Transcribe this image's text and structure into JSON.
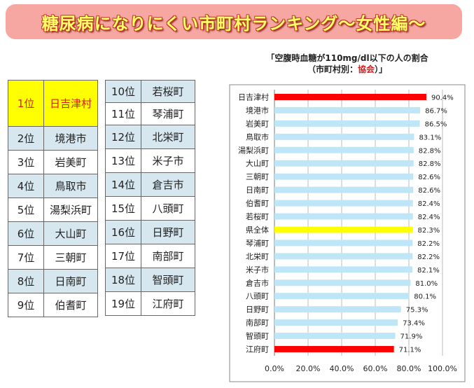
{
  "banner": {
    "title": "糖尿病になりにくい市町村ランキング〜女性編〜"
  },
  "ranking_left": [
    {
      "rank": "1位",
      "town": "日吉津村"
    },
    {
      "rank": "2位",
      "town": "境港市"
    },
    {
      "rank": "3位",
      "town": "岩美町"
    },
    {
      "rank": "4位",
      "town": "鳥取市"
    },
    {
      "rank": "5位",
      "town": "湯梨浜町"
    },
    {
      "rank": "6位",
      "town": "大山町"
    },
    {
      "rank": "7位",
      "town": "三朝町"
    },
    {
      "rank": "8位",
      "town": "日南町"
    },
    {
      "rank": "9位",
      "town": "伯耆町"
    }
  ],
  "ranking_right": [
    {
      "rank": "10位",
      "town": "若桜町"
    },
    {
      "rank": "11位",
      "town": "琴浦町"
    },
    {
      "rank": "12位",
      "town": "北栄町"
    },
    {
      "rank": "13位",
      "town": "米子市"
    },
    {
      "rank": "14位",
      "town": "倉吉市"
    },
    {
      "rank": "15位",
      "town": "八頭町"
    },
    {
      "rank": "16位",
      "town": "日野町"
    },
    {
      "rank": "17位",
      "town": "南部町"
    },
    {
      "rank": "18位",
      "town": "智頭町"
    },
    {
      "rank": "19位",
      "town": "江府町"
    }
  ],
  "chart_data": {
    "type": "bar",
    "orientation": "horizontal",
    "title": "「空腹時血糖が110mg/dl以下の人の割合",
    "subtitle_prefix": "（市町村別：",
    "subtitle_highlight": "協会",
    "subtitle_suffix": "）」",
    "categories": [
      "日吉津村",
      "境港市",
      "岩美町",
      "鳥取市",
      "湯梨浜町",
      "大山町",
      "三朝町",
      "日南町",
      "伯耆町",
      "若桜町",
      "県全体",
      "琴浦町",
      "北栄町",
      "米子市",
      "倉吉市",
      "八頭町",
      "日野町",
      "南部町",
      "智頭町",
      "江府町"
    ],
    "values": [
      90.4,
      86.7,
      86.5,
      83.1,
      82.8,
      82.8,
      82.6,
      82.6,
      82.4,
      82.4,
      82.3,
      82.2,
      82.2,
      82.1,
      81.0,
      80.1,
      75.3,
      73.4,
      71.9,
      71.1
    ],
    "value_labels": [
      "90.4%",
      "86.7%",
      "86.5%",
      "83.1%",
      "82.8%",
      "82.8%",
      "82.6%",
      "82.6%",
      "82.4%",
      "82.4%",
      "82.3%",
      "82.2%",
      "82.2%",
      "82.1%",
      "81.0%",
      "80.1%",
      "75.3%",
      "73.4%",
      "71.9%",
      "71.1%"
    ],
    "bar_colors": [
      "#ff0000",
      "#bfe6f7",
      "#bfe6f7",
      "#bfe6f7",
      "#bfe6f7",
      "#bfe6f7",
      "#bfe6f7",
      "#bfe6f7",
      "#bfe6f7",
      "#bfe6f7",
      "#ffff00",
      "#bfe6f7",
      "#bfe6f7",
      "#bfe6f7",
      "#bfe6f7",
      "#bfe6f7",
      "#bfe6f7",
      "#bfe6f7",
      "#bfe6f7",
      "#ff0000"
    ],
    "xlim": [
      0,
      100
    ],
    "xticks": [
      "0.0%",
      "20.0%",
      "40.0%",
      "60.0%",
      "80.0%",
      "100.0%"
    ],
    "grid": true
  }
}
